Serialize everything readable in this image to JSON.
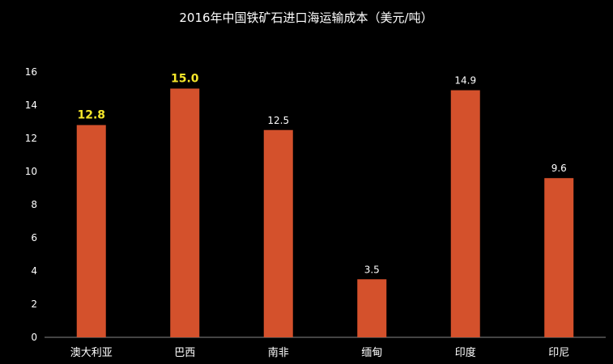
{
  "chart_data": {
    "type": "bar",
    "title": "2016年中国铁矿石进口海运输成本（美元/吨）",
    "xlabel": "",
    "ylabel": "",
    "ylim": [
      0,
      16
    ],
    "yticks": [
      0,
      2,
      4,
      6,
      8,
      10,
      12,
      14,
      16
    ],
    "categories": [
      "澳大利亚",
      "巴西",
      "南非",
      "缅甸",
      "印度",
      "印尼"
    ],
    "values": [
      12.8,
      15.0,
      12.5,
      3.5,
      14.9,
      9.6
    ],
    "value_labels": [
      "12.8",
      "15.0",
      "12.5",
      "3.5",
      "14.9",
      "9.6"
    ],
    "highlighted": [
      true,
      true,
      false,
      false,
      false,
      false
    ],
    "grid": false,
    "legend": "none",
    "colors": {
      "background": "#000000",
      "bar": "#d4512c",
      "text": "#ffffff",
      "highlight_label": "#f5e62a",
      "axis": "#888888"
    }
  }
}
